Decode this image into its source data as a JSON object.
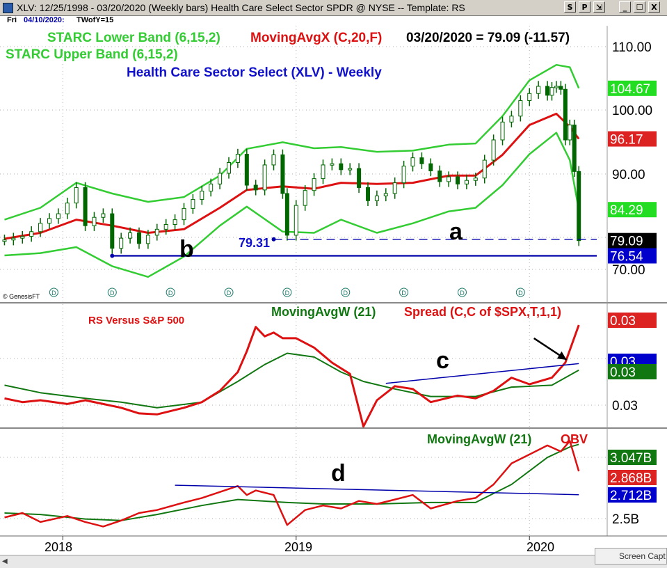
{
  "window": {
    "title": "XLV:  12/25/1998 - 03/20/2020  (Weekly bars)   Health Care Select Sector SPDR @ NYSE  --  Template: RS",
    "buttons": [
      "S",
      "P",
      "⇲",
      "_",
      "☐",
      "X"
    ],
    "date_label": "Fri",
    "date_value": "04/10/2020:",
    "tw_label": "TWofY=15"
  },
  "footer": {
    "capture_label": "Screen Capt"
  },
  "chart_data": [
    {
      "type": "line",
      "panel": "price",
      "labels": {
        "lower_band": "STARC Lower Band (6,15,2)",
        "moving_avg": "MovingAvgX (C,20,F)",
        "readout": "03/20/2020 = 79.09 (-11.57)",
        "upper_band": "STARC Upper Band (6,15,2)",
        "title": "Health Care Sector Select (XLV) - Weekly",
        "annotation_a": "a",
        "annotation_b": "b",
        "support_label": "79.31",
        "watermark": "© GenesisFT"
      },
      "y_ticks": [
        "110.00",
        "100.00",
        "90.00",
        "70.00"
      ],
      "ylim": [
        69,
        114
      ],
      "badges": [
        {
          "text": "104.67",
          "value": 104.67,
          "color": "#22dd22"
        },
        {
          "text": "96.17",
          "value": 96.17,
          "color": "#dd2222"
        },
        {
          "text": "84.29",
          "value": 84.29,
          "color": "#22dd22"
        },
        {
          "text": "79.09",
          "value": 79.09,
          "color": "#000000"
        },
        {
          "text": "76.54",
          "value": 76.54,
          "color": "#0000cc"
        }
      ],
      "support_lines": [
        {
          "name": "support-79",
          "value": 79.31,
          "from": "2018-11-30",
          "style": "dashed"
        },
        {
          "name": "support-76",
          "value": 76.54,
          "from": "2018-03-23",
          "style": "solid"
        }
      ],
      "close": [
        [
          "2017-10-06",
          79.2
        ],
        [
          "2017-10-20",
          79.5
        ],
        [
          "2017-11-03",
          79.8
        ],
        [
          "2017-11-17",
          80.6
        ],
        [
          "2017-12-01",
          82.0
        ],
        [
          "2017-12-15",
          82.8
        ],
        [
          "2017-12-29",
          83.6
        ],
        [
          "2018-01-12",
          85.4
        ],
        [
          "2018-01-26",
          88.0
        ],
        [
          "2018-02-09",
          81.6
        ],
        [
          "2018-02-23",
          83.0
        ],
        [
          "2018-03-09",
          83.6
        ],
        [
          "2018-03-23",
          77.8
        ],
        [
          "2018-04-06",
          79.5
        ],
        [
          "2018-04-20",
          80.4
        ],
        [
          "2018-05-04",
          78.6
        ],
        [
          "2018-05-18",
          80.0
        ],
        [
          "2018-06-01",
          81.0
        ],
        [
          "2018-06-15",
          81.8
        ],
        [
          "2018-06-29",
          82.6
        ],
        [
          "2018-07-13",
          84.5
        ],
        [
          "2018-07-27",
          86.0
        ],
        [
          "2018-08-10",
          87.4
        ],
        [
          "2018-08-24",
          88.6
        ],
        [
          "2018-09-07",
          90.4
        ],
        [
          "2018-09-21",
          92.2
        ],
        [
          "2018-10-05",
          93.6
        ],
        [
          "2018-10-19",
          88.4
        ],
        [
          "2018-11-02",
          87.6
        ],
        [
          "2018-11-16",
          91.8
        ],
        [
          "2018-11-30",
          93.5
        ],
        [
          "2018-12-14",
          87.0
        ],
        [
          "2018-12-21",
          80.0
        ],
        [
          "2019-01-04",
          85.0
        ],
        [
          "2019-01-18",
          87.5
        ],
        [
          "2019-02-01",
          89.5
        ],
        [
          "2019-02-15",
          91.8
        ],
        [
          "2019-03-01",
          92.0
        ],
        [
          "2019-03-15",
          91.0
        ],
        [
          "2019-03-29",
          91.2
        ],
        [
          "2019-04-12",
          88.0
        ],
        [
          "2019-04-26",
          85.8
        ],
        [
          "2019-05-10",
          86.6
        ],
        [
          "2019-05-24",
          87.0
        ],
        [
          "2019-06-07",
          88.8
        ],
        [
          "2019-06-21",
          91.6
        ],
        [
          "2019-07-05",
          93.0
        ],
        [
          "2019-07-19",
          92.0
        ],
        [
          "2019-08-02",
          90.8
        ],
        [
          "2019-08-16",
          89.0
        ],
        [
          "2019-08-30",
          89.8
        ],
        [
          "2019-09-13",
          88.6
        ],
        [
          "2019-09-27",
          89.2
        ],
        [
          "2019-10-11",
          89.6
        ],
        [
          "2019-10-25",
          92.6
        ],
        [
          "2019-11-08",
          96.0
        ],
        [
          "2019-11-22",
          99.0
        ],
        [
          "2019-12-06",
          100.0
        ],
        [
          "2019-12-20",
          102.6
        ],
        [
          "2020-01-03",
          103.8
        ],
        [
          "2020-01-17",
          105.0
        ],
        [
          "2020-01-31",
          103.5
        ],
        [
          "2020-02-07",
          104.8
        ],
        [
          "2020-02-14",
          105.0
        ],
        [
          "2020-02-21",
          104.5
        ],
        [
          "2020-02-28",
          96.0
        ],
        [
          "2020-03-06",
          98.5
        ],
        [
          "2020-03-13",
          90.7
        ],
        [
          "2020-03-20",
          79.09
        ]
      ],
      "ma20": [
        [
          "2017-10-06",
          79.4
        ],
        [
          "2017-12-01",
          80.4
        ],
        [
          "2018-01-26",
          82.6
        ],
        [
          "2018-03-23",
          81.6
        ],
        [
          "2018-05-18",
          80.4
        ],
        [
          "2018-07-13",
          81.0
        ],
        [
          "2018-09-07",
          84.6
        ],
        [
          "2018-10-19",
          87.6
        ],
        [
          "2018-12-14",
          88.2
        ],
        [
          "2019-02-01",
          87.8
        ],
        [
          "2019-03-15",
          88.8
        ],
        [
          "2019-05-10",
          88.6
        ],
        [
          "2019-07-05",
          88.8
        ],
        [
          "2019-08-30",
          90.0
        ],
        [
          "2019-10-11",
          90.0
        ],
        [
          "2019-11-22",
          93.5
        ],
        [
          "2020-01-03",
          98.5
        ],
        [
          "2020-02-14",
          100.4
        ],
        [
          "2020-03-06",
          98.2
        ],
        [
          "2020-03-20",
          96.17
        ]
      ],
      "upper": [
        [
          "2017-10-06",
          82.6
        ],
        [
          "2017-12-01",
          84.6
        ],
        [
          "2018-01-26",
          88.8
        ],
        [
          "2018-03-23",
          87.0
        ],
        [
          "2018-05-18",
          85.6
        ],
        [
          "2018-07-13",
          86.4
        ],
        [
          "2018-09-07",
          90.0
        ],
        [
          "2018-10-19",
          94.5
        ],
        [
          "2018-12-14",
          95.6
        ],
        [
          "2019-02-01",
          94.6
        ],
        [
          "2019-03-15",
          94.8
        ],
        [
          "2019-05-10",
          94.0
        ],
        [
          "2019-07-05",
          94.2
        ],
        [
          "2019-08-30",
          95.2
        ],
        [
          "2019-10-11",
          95.4
        ],
        [
          "2019-11-22",
          100.0
        ],
        [
          "2020-01-03",
          106.0
        ],
        [
          "2020-02-14",
          108.6
        ],
        [
          "2020-03-06",
          108.2
        ],
        [
          "2020-03-20",
          104.67
        ]
      ],
      "lower": [
        [
          "2017-10-06",
          76.6
        ],
        [
          "2017-12-01",
          77.0
        ],
        [
          "2018-01-26",
          78.0
        ],
        [
          "2018-03-23",
          74.8
        ],
        [
          "2018-05-18",
          73.0
        ],
        [
          "2018-07-13",
          76.4
        ],
        [
          "2018-09-07",
          81.6
        ],
        [
          "2018-10-19",
          84.8
        ],
        [
          "2018-12-14",
          80.6
        ],
        [
          "2019-02-01",
          80.4
        ],
        [
          "2019-03-15",
          82.6
        ],
        [
          "2019-05-10",
          80.4
        ],
        [
          "2019-07-05",
          82.0
        ],
        [
          "2019-08-30",
          84.0
        ],
        [
          "2019-10-11",
          84.6
        ],
        [
          "2019-11-22",
          88.4
        ],
        [
          "2020-01-03",
          93.6
        ],
        [
          "2020-02-14",
          97.2
        ],
        [
          "2020-03-06",
          92.6
        ],
        [
          "2020-03-20",
          84.29
        ]
      ]
    },
    {
      "type": "line",
      "panel": "relative-strength",
      "labels": {
        "title": "RS Versus S&P 500",
        "moving_avg": "MovingAvgW (21)",
        "spread": "Spread (C,C of $SPX,T,1,1)",
        "annotation_c": "c"
      },
      "y_ticks": [
        "0.03"
      ],
      "badges": [
        {
          "text": "0.03",
          "color": "#dd2222"
        },
        {
          "text": "0.03",
          "color": "#0000cc"
        },
        {
          "text": "0.03",
          "color": "#117711"
        }
      ],
      "ylim": [
        0,
        100
      ],
      "trendline": [
        [
          "2019-05-24",
          38
        ],
        [
          "2020-03-20",
          59
        ]
      ],
      "arrow": [
        [
          "2020-01-10",
          86
        ],
        [
          "2020-03-01",
          63
        ]
      ],
      "rs": [
        [
          "2017-10-06",
          22
        ],
        [
          "2017-11-03",
          18
        ],
        [
          "2017-12-01",
          20
        ],
        [
          "2018-01-12",
          16
        ],
        [
          "2018-02-09",
          20
        ],
        [
          "2018-03-09",
          16
        ],
        [
          "2018-04-06",
          12
        ],
        [
          "2018-05-04",
          6
        ],
        [
          "2018-06-01",
          5
        ],
        [
          "2018-07-13",
          12
        ],
        [
          "2018-08-10",
          18
        ],
        [
          "2018-09-07",
          30
        ],
        [
          "2018-10-05",
          50
        ],
        [
          "2018-10-19",
          72
        ],
        [
          "2018-11-02",
          98
        ],
        [
          "2018-11-16",
          88
        ],
        [
          "2018-11-30",
          92
        ],
        [
          "2018-12-14",
          86
        ],
        [
          "2019-01-04",
          86
        ],
        [
          "2019-02-01",
          76
        ],
        [
          "2019-03-01",
          60
        ],
        [
          "2019-03-29",
          48
        ],
        [
          "2019-04-19",
          -8
        ],
        [
          "2019-05-10",
          20
        ],
        [
          "2019-06-07",
          35
        ],
        [
          "2019-07-05",
          32
        ],
        [
          "2019-08-02",
          18
        ],
        [
          "2019-09-13",
          25
        ],
        [
          "2019-10-11",
          22
        ],
        [
          "2019-11-08",
          30
        ],
        [
          "2019-12-06",
          44
        ],
        [
          "2020-01-03",
          37
        ],
        [
          "2020-02-07",
          44
        ],
        [
          "2020-02-28",
          60
        ],
        [
          "2020-03-20",
          100
        ]
      ],
      "ma21": [
        [
          "2017-10-06",
          36
        ],
        [
          "2017-12-01",
          28
        ],
        [
          "2018-02-09",
          22
        ],
        [
          "2018-04-06",
          18
        ],
        [
          "2018-06-01",
          12
        ],
        [
          "2018-08-10",
          18
        ],
        [
          "2018-10-05",
          40
        ],
        [
          "2018-11-16",
          58
        ],
        [
          "2018-12-21",
          70
        ],
        [
          "2019-02-01",
          66
        ],
        [
          "2019-03-15",
          50
        ],
        [
          "2019-04-19",
          40
        ],
        [
          "2019-06-07",
          32
        ],
        [
          "2019-08-02",
          24
        ],
        [
          "2019-10-11",
          24
        ],
        [
          "2019-12-06",
          34
        ],
        [
          "2020-02-07",
          36
        ],
        [
          "2020-03-20",
          52
        ]
      ]
    },
    {
      "type": "line",
      "panel": "obv",
      "labels": {
        "moving_avg": "MovingAvgW (21)",
        "obv": "OBV",
        "annotation_d": "d"
      },
      "y_ticks": [
        "2.5B"
      ],
      "ylim": [
        2.46,
        3.1
      ],
      "badges": [
        {
          "text": "3.047B",
          "value": 3.047,
          "color": "#117711"
        },
        {
          "text": "2.868B",
          "value": 2.868,
          "color": "#dd2222"
        },
        {
          "text": "2.712B",
          "value": 2.712,
          "color": "#0000cc"
        }
      ],
      "trendline": [
        [
          "2018-06-29",
          2.775
        ],
        [
          "2020-03-20",
          2.712
        ]
      ],
      "obv": [
        [
          "2017-10-06",
          2.56
        ],
        [
          "2017-11-03",
          2.59
        ],
        [
          "2017-12-01",
          2.53
        ],
        [
          "2018-01-12",
          2.57
        ],
        [
          "2018-02-09",
          2.53
        ],
        [
          "2018-03-09",
          2.5
        ],
        [
          "2018-04-06",
          2.54
        ],
        [
          "2018-05-04",
          2.59
        ],
        [
          "2018-06-01",
          2.61
        ],
        [
          "2018-07-13",
          2.66
        ],
        [
          "2018-08-10",
          2.69
        ],
        [
          "2018-09-07",
          2.73
        ],
        [
          "2018-10-05",
          2.77
        ],
        [
          "2018-10-19",
          2.71
        ],
        [
          "2018-11-02",
          2.74
        ],
        [
          "2018-11-30",
          2.71
        ],
        [
          "2018-12-21",
          2.51
        ],
        [
          "2019-01-18",
          2.61
        ],
        [
          "2019-02-15",
          2.64
        ],
        [
          "2019-03-15",
          2.62
        ],
        [
          "2019-04-12",
          2.67
        ],
        [
          "2019-05-10",
          2.65
        ],
        [
          "2019-06-07",
          2.68
        ],
        [
          "2019-07-05",
          2.71
        ],
        [
          "2019-08-02",
          2.62
        ],
        [
          "2019-09-13",
          2.67
        ],
        [
          "2019-10-11",
          2.69
        ],
        [
          "2019-11-08",
          2.78
        ],
        [
          "2019-12-06",
          2.92
        ],
        [
          "2020-01-03",
          2.98
        ],
        [
          "2020-01-31",
          3.04
        ],
        [
          "2020-02-21",
          3.0
        ],
        [
          "2020-03-06",
          3.07
        ],
        [
          "2020-03-20",
          2.868
        ]
      ],
      "ma21": [
        [
          "2017-10-06",
          2.59
        ],
        [
          "2017-12-01",
          2.58
        ],
        [
          "2018-02-09",
          2.55
        ],
        [
          "2018-04-06",
          2.54
        ],
        [
          "2018-06-01",
          2.58
        ],
        [
          "2018-08-10",
          2.64
        ],
        [
          "2018-10-05",
          2.68
        ],
        [
          "2018-12-21",
          2.66
        ],
        [
          "2019-02-15",
          2.65
        ],
        [
          "2019-05-10",
          2.65
        ],
        [
          "2019-08-02",
          2.66
        ],
        [
          "2019-10-11",
          2.66
        ],
        [
          "2019-12-06",
          2.78
        ],
        [
          "2020-01-31",
          2.96
        ],
        [
          "2020-03-06",
          3.03
        ],
        [
          "2020-03-20",
          3.047
        ]
      ]
    }
  ],
  "x_axis": {
    "ticks": [
      {
        "label": "2018",
        "date": "2018-01-05"
      },
      {
        "label": "2019",
        "date": "2019-01-04"
      },
      {
        "label": "2020",
        "date": "2020-01-03"
      }
    ],
    "dividend_marker": "D",
    "dividend_dates": [
      "2017-09-22",
      "2017-12-22",
      "2018-03-23",
      "2018-06-22",
      "2018-09-21",
      "2018-12-21",
      "2019-03-22",
      "2019-06-21",
      "2019-09-20",
      "2019-12-20"
    ],
    "range": [
      "2017-09-29",
      "2020-04-17"
    ]
  },
  "colors": {
    "price_bar": "#006600",
    "ma": "#dd1111",
    "band": "#33cc33",
    "support": "#0000aa",
    "obv_ma": "#117711"
  }
}
